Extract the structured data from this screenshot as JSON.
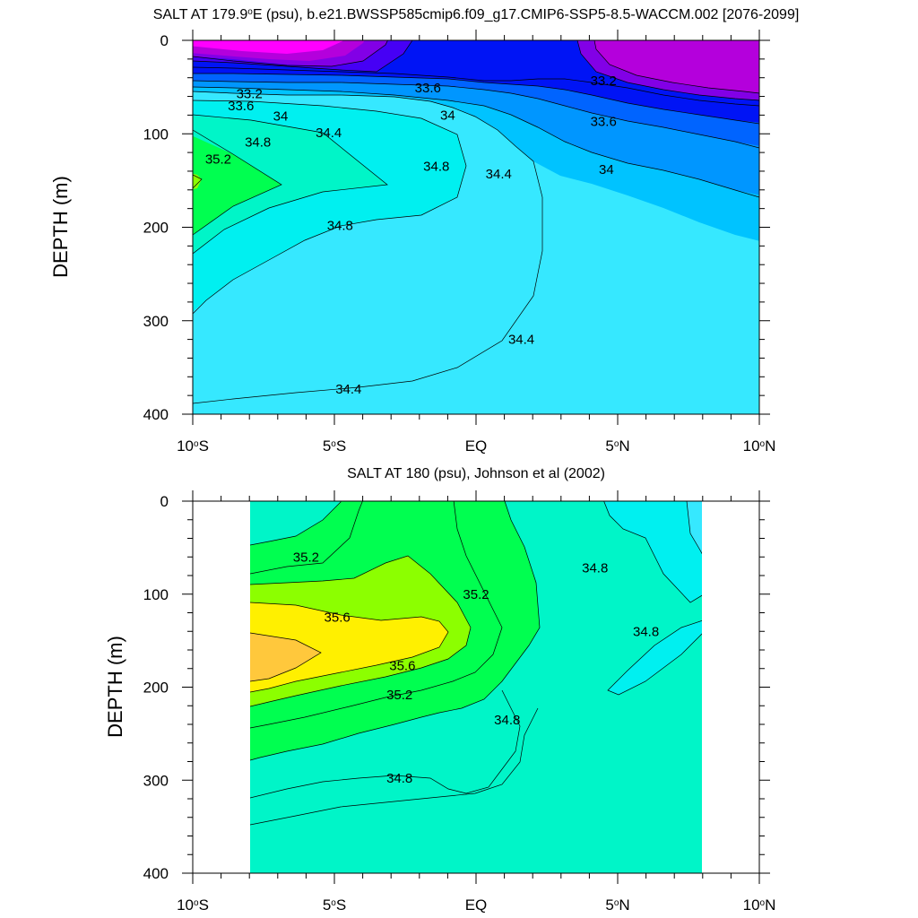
{
  "chart_data": [
    {
      "type": "contour",
      "title_pre": "SALT AT 179.9",
      "title_sup": "o",
      "title_post": "E (psu), b.e21.BWSSP585cmip6.f09_g17.CMIP6-SSP5-8.5-WACCM.002 [2076-2099]",
      "ylabel": "DEPTH (m)",
      "xlim": [
        -10,
        10
      ],
      "ylim": [
        0,
        400
      ],
      "yticks": [
        0,
        100,
        200,
        300,
        400
      ],
      "xticks": [
        {
          "value": -10,
          "pre": "10",
          "post": "S"
        },
        {
          "value": -5,
          "pre": "5",
          "post": "S"
        },
        {
          "value": 0,
          "pre": "EQ",
          "post": ""
        },
        {
          "value": 5,
          "pre": "5",
          "post": "N"
        },
        {
          "value": 10,
          "pre": "10",
          "post": "N"
        }
      ],
      "levels": [
        33.2,
        33.6,
        34,
        34.4,
        34.8,
        35.2
      ],
      "contour_labels": [
        {
          "text": "33.2",
          "x": -8.0,
          "y": 57
        },
        {
          "text": "33.6",
          "x": -8.3,
          "y": 70
        },
        {
          "text": "34",
          "x": -6.9,
          "y": 81
        },
        {
          "text": "34.4",
          "x": -5.2,
          "y": 99
        },
        {
          "text": "34.8",
          "x": -7.7,
          "y": 109
        },
        {
          "text": "35.2",
          "x": -9.1,
          "y": 127
        },
        {
          "text": "33.6",
          "x": -1.7,
          "y": 51
        },
        {
          "text": "34",
          "x": -1.0,
          "y": 80
        },
        {
          "text": "34.8",
          "x": -1.4,
          "y": 135
        },
        {
          "text": "34.4",
          "x": 0.8,
          "y": 143
        },
        {
          "text": "34.8",
          "x": -4.8,
          "y": 198
        },
        {
          "text": "34.4",
          "x": 1.6,
          "y": 320
        },
        {
          "text": "34.4",
          "x": -4.5,
          "y": 373
        },
        {
          "text": "33.2",
          "x": 4.5,
          "y": 43
        },
        {
          "text": "33.6",
          "x": 4.5,
          "y": 87
        },
        {
          "text": "34",
          "x": 4.6,
          "y": 138
        }
      ]
    },
    {
      "type": "contour",
      "title": "SALT AT 180 (psu), Johnson et al (2002)",
      "ylabel": "DEPTH (m)",
      "xlim": [
        -10,
        10
      ],
      "ylim": [
        0,
        400
      ],
      "yticks": [
        0,
        100,
        200,
        300,
        400
      ],
      "xticks": [
        {
          "value": -10,
          "pre": "10",
          "post": "S"
        },
        {
          "value": -5,
          "pre": "5",
          "post": "S"
        },
        {
          "value": 0,
          "pre": "EQ",
          "post": ""
        },
        {
          "value": 5,
          "pre": "5",
          "post": "N"
        },
        {
          "value": 10,
          "pre": "10",
          "post": "N"
        }
      ],
      "data_xrange": [
        -8,
        8
      ],
      "levels": [
        34.8,
        35.2,
        35.6
      ],
      "contour_labels": [
        {
          "text": "35.2",
          "x": -6.0,
          "y": 60
        },
        {
          "text": "35.6",
          "x": -4.9,
          "y": 125
        },
        {
          "text": "35.2",
          "x": 0.0,
          "y": 100
        },
        {
          "text": "35.6",
          "x": -2.6,
          "y": 177
        },
        {
          "text": "35.2",
          "x": -2.7,
          "y": 208
        },
        {
          "text": "34.8",
          "x": 4.2,
          "y": 72
        },
        {
          "text": "34.8",
          "x": 6.0,
          "y": 140
        },
        {
          "text": "34.8",
          "x": 1.1,
          "y": 235
        },
        {
          "text": "34.8",
          "x": -2.7,
          "y": 298
        }
      ]
    }
  ],
  "colors": {
    "s_lt33": "#ff00ff",
    "s_33_0": "#e600f0",
    "s_33_2": "#b400dc",
    "s_33_4": "#8200e6",
    "s_33_6": "#4600f5",
    "s_33_8": "#0014f5",
    "s_34_0": "#0064ff",
    "s_34_2": "#0096ff",
    "s_34_4": "#00c3ff",
    "s_34_6": "#36e8ff",
    "s_34_8": "#00f0f0",
    "s_35_0": "#00f5c8",
    "s_35_2": "#00ff8c",
    "s_35_4": "#00ff50",
    "s_35_6": "#8cff00",
    "s_35_8": "#fff000",
    "s_36_0": "#ffc83c"
  }
}
